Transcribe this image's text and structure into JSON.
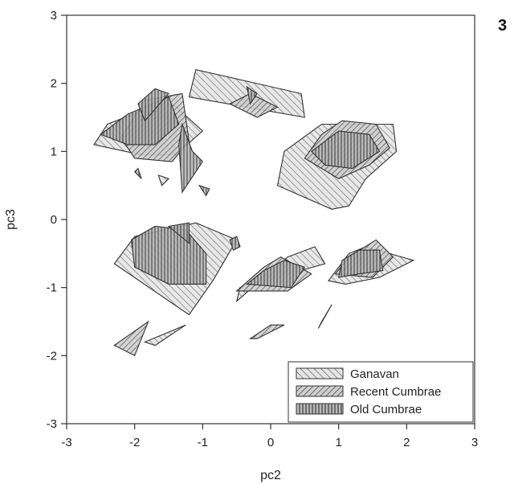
{
  "panel_label": "3",
  "chart_data": {
    "type": "scatter",
    "title": "",
    "xlabel": "pc2",
    "ylabel": "pc3",
    "xlim": [
      -3,
      3
    ],
    "ylim": [
      -3,
      3
    ],
    "xticks": [
      "-3",
      "-2",
      "-1",
      "0",
      "1",
      "2",
      "3"
    ],
    "yticks": [
      "-3",
      "-2",
      "-1",
      "0",
      "1",
      "2",
      "3"
    ],
    "grid": false,
    "legend_position": "bottom-right",
    "legend": [
      {
        "key": "ganavan",
        "label": "Ganavan",
        "pattern": "diagonal-forward"
      },
      {
        "key": "recent",
        "label": "Recent Cumbrae",
        "pattern": "diagonal-backward"
      },
      {
        "key": "old",
        "label": "Old Cumbrae",
        "pattern": "vertical"
      }
    ],
    "series": [
      {
        "key": "ganavan",
        "label": "Ganavan",
        "hulls": [
          [
            [
              -2.6,
              1.1
            ],
            [
              -2.4,
              1.4
            ],
            [
              -1.5,
              1.75
            ],
            [
              -1.0,
              1.3
            ],
            [
              -1.4,
              0.95
            ],
            [
              -1.9,
              0.95
            ]
          ],
          [
            [
              -1.1,
              2.2
            ],
            [
              0.45,
              1.85
            ],
            [
              0.5,
              1.5
            ],
            [
              -1.2,
              1.8
            ]
          ],
          [
            [
              -1.65,
              0.65
            ],
            [
              -1.6,
              0.5
            ],
            [
              -1.5,
              0.6
            ]
          ],
          [
            [
              0.1,
              0.5
            ],
            [
              0.2,
              1.0
            ],
            [
              0.75,
              1.4
            ],
            [
              1.8,
              1.4
            ],
            [
              1.85,
              1.0
            ],
            [
              1.4,
              0.6
            ],
            [
              1.15,
              0.2
            ],
            [
              0.9,
              0.15
            ]
          ],
          [
            [
              -2.0,
              -0.25
            ],
            [
              -1.1,
              -0.05
            ],
            [
              -0.5,
              -0.3
            ],
            [
              -0.85,
              -0.9
            ],
            [
              -1.2,
              -1.4
            ],
            [
              -2.3,
              -0.65
            ]
          ],
          [
            [
              -0.5,
              -1.2
            ],
            [
              0.25,
              -0.55
            ],
            [
              0.65,
              -0.4
            ],
            [
              0.8,
              -0.65
            ],
            [
              -0.45,
              -1.0
            ]
          ],
          [
            [
              -1.85,
              -1.8
            ],
            [
              -1.25,
              -1.55
            ],
            [
              -1.7,
              -1.85
            ]
          ],
          [
            [
              0.85,
              -0.9
            ],
            [
              1.15,
              -0.5
            ],
            [
              1.4,
              -0.4
            ],
            [
              2.1,
              -0.6
            ],
            [
              1.6,
              -0.85
            ],
            [
              1.1,
              -0.95
            ]
          ]
        ]
      },
      {
        "key": "recent",
        "label": "Recent Cumbrae",
        "hulls": [
          [
            [
              -2.2,
              1.2
            ],
            [
              -1.85,
              1.75
            ],
            [
              -1.3,
              1.85
            ],
            [
              -1.2,
              1.15
            ],
            [
              -1.45,
              0.85
            ],
            [
              -2.0,
              0.9
            ]
          ],
          [
            [
              -0.6,
              1.7
            ],
            [
              -0.3,
              1.85
            ],
            [
              0.1,
              1.65
            ],
            [
              -0.2,
              1.5
            ]
          ],
          [
            [
              0.5,
              0.9
            ],
            [
              0.75,
              1.25
            ],
            [
              1.05,
              1.45
            ],
            [
              1.55,
              1.4
            ],
            [
              1.75,
              1.05
            ],
            [
              1.45,
              0.8
            ],
            [
              1.0,
              0.6
            ]
          ],
          [
            [
              -2.3,
              -1.85
            ],
            [
              -1.8,
              -1.5
            ],
            [
              -1.9,
              -1.75
            ],
            [
              -2.0,
              -2.0
            ]
          ],
          [
            [
              -0.3,
              -1.75
            ],
            [
              0.0,
              -1.55
            ],
            [
              0.2,
              -1.55
            ],
            [
              -0.2,
              -1.75
            ]
          ],
          [
            [
              0.7,
              -1.6
            ],
            [
              0.9,
              -1.25
            ],
            [
              0.75,
              -1.5
            ]
          ],
          [
            [
              -0.5,
              -1.05
            ],
            [
              -0.1,
              -0.7
            ],
            [
              0.15,
              -0.55
            ],
            [
              0.6,
              -0.8
            ],
            [
              0.25,
              -1.05
            ]
          ],
          [
            [
              0.95,
              -0.8
            ],
            [
              1.15,
              -0.55
            ],
            [
              1.55,
              -0.3
            ],
            [
              1.8,
              -0.55
            ],
            [
              1.5,
              -0.85
            ]
          ]
        ]
      },
      {
        "key": "old",
        "label": "Old Cumbrae",
        "hulls": [
          [
            [
              -2.5,
              1.25
            ],
            [
              -2.1,
              1.55
            ],
            [
              -1.5,
              1.8
            ],
            [
              -1.35,
              1.4
            ],
            [
              -1.7,
              1.1
            ],
            [
              -2.1,
              1.1
            ]
          ],
          [
            [
              -1.95,
              1.7
            ],
            [
              -1.7,
              1.92
            ],
            [
              -1.5,
              1.85
            ],
            [
              -1.85,
              1.45
            ]
          ],
          [
            [
              -1.3,
              1.4
            ],
            [
              -1.15,
              1.0
            ],
            [
              -1.0,
              0.85
            ],
            [
              -1.3,
              0.4
            ],
            [
              -1.35,
              1.1
            ]
          ],
          [
            [
              -2.0,
              0.7
            ],
            [
              -1.9,
              0.6
            ],
            [
              -1.95,
              0.75
            ]
          ],
          [
            [
              -1.05,
              0.5
            ],
            [
              -0.95,
              0.35
            ],
            [
              -0.9,
              0.45
            ]
          ],
          [
            [
              -0.35,
              1.95
            ],
            [
              -0.2,
              1.85
            ],
            [
              -0.3,
              1.7
            ]
          ],
          [
            [
              0.6,
              1.0
            ],
            [
              1.0,
              1.3
            ],
            [
              1.45,
              1.25
            ],
            [
              1.6,
              1.0
            ],
            [
              1.2,
              0.75
            ],
            [
              0.8,
              0.8
            ]
          ],
          [
            [
              -2.05,
              -0.3
            ],
            [
              -1.7,
              -0.1
            ],
            [
              -1.25,
              -0.15
            ],
            [
              -0.95,
              -0.5
            ],
            [
              -0.95,
              -0.95
            ],
            [
              -1.5,
              -0.95
            ],
            [
              -2.0,
              -0.7
            ]
          ],
          [
            [
              -1.5,
              -0.1
            ],
            [
              -1.2,
              -0.05
            ],
            [
              -1.2,
              -0.35
            ]
          ],
          [
            [
              -0.6,
              -0.3
            ],
            [
              -0.5,
              -0.25
            ],
            [
              -0.45,
              -0.4
            ],
            [
              -0.55,
              -0.45
            ]
          ],
          [
            [
              -0.35,
              -0.95
            ],
            [
              -0.1,
              -0.75
            ],
            [
              0.2,
              -0.6
            ],
            [
              0.5,
              -0.7
            ],
            [
              0.3,
              -1.0
            ]
          ],
          [
            [
              1.0,
              -0.85
            ],
            [
              1.05,
              -0.6
            ],
            [
              1.3,
              -0.45
            ],
            [
              1.6,
              -0.45
            ],
            [
              1.65,
              -0.75
            ],
            [
              1.3,
              -0.8
            ]
          ]
        ]
      }
    ]
  }
}
